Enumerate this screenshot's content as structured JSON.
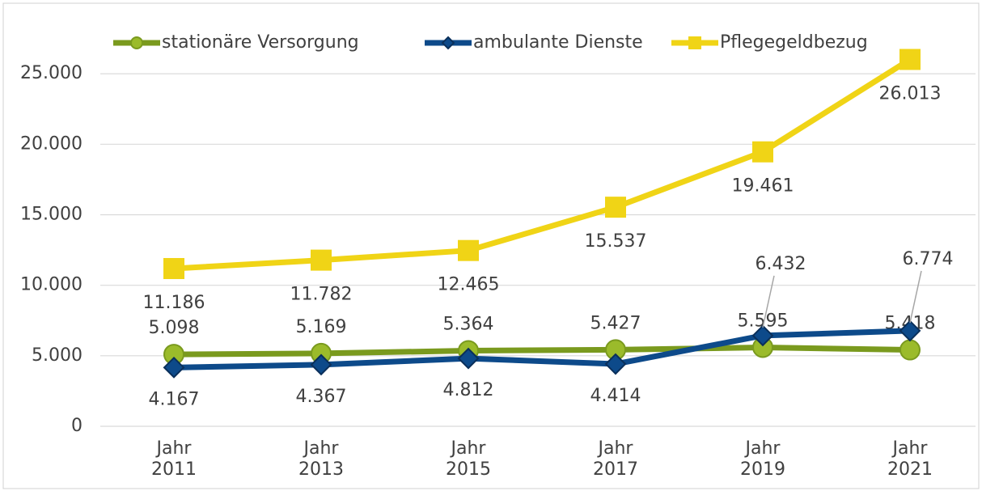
{
  "chart_data": {
    "type": "line",
    "categories": [
      "Jahr 2011",
      "Jahr 2013",
      "Jahr 2015",
      "Jahr 2017",
      "Jahr 2019",
      "Jahr 2021"
    ],
    "series": [
      {
        "name": "stationäre Versorgung",
        "color": "#7a9a1e",
        "marker": "circle",
        "values": [
          5098,
          5169,
          5364,
          5427,
          5595,
          5418
        ],
        "value_labels": [
          "5.098",
          "5.169",
          "5.364",
          "5.427",
          "5.595",
          "5.418"
        ]
      },
      {
        "name": "ambulante Dienste",
        "color": "#0d4a8a",
        "marker": "diamond",
        "values": [
          4167,
          4367,
          4812,
          4414,
          6432,
          6774
        ],
        "value_labels": [
          "4.167",
          "4.367",
          "4.812",
          "4.414",
          "6.432",
          "6.774"
        ]
      },
      {
        "name": "Pflegegeldbezug",
        "color": "#f0d416",
        "marker": "square",
        "values": [
          11186,
          11782,
          12465,
          15537,
          19461,
          26013
        ],
        "value_labels": [
          "11.186",
          "11.782",
          "12.465",
          "15.537",
          "19.461",
          "26.013"
        ]
      }
    ],
    "ylim": [
      0,
      30000
    ],
    "yticks": [
      0,
      {
        "value": 5000,
        "label": "5.000"
      },
      {
        "value": 10000,
        "label": "10.000"
      },
      {
        "value": 15000,
        "label": "15.000"
      },
      {
        "value": 20000,
        "label": "20.000"
      },
      {
        "value": 25000,
        "label": "25.000"
      }
    ],
    "grid": true,
    "legend": "top"
  }
}
